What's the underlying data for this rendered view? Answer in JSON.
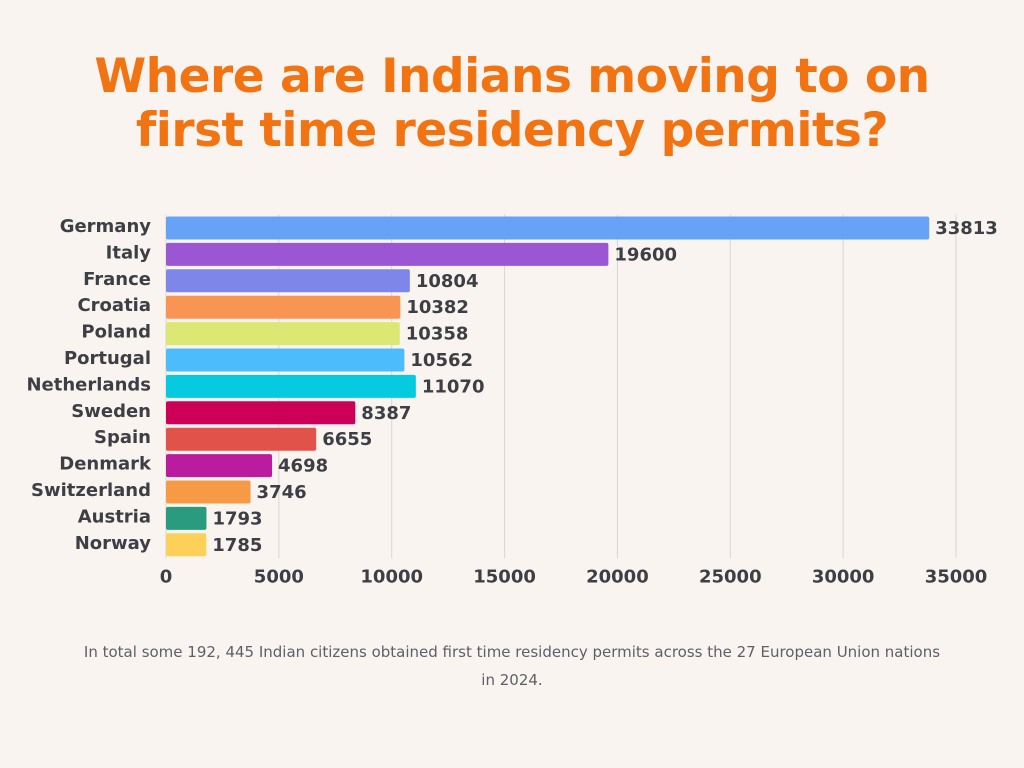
{
  "title_line1": "Where are Indians moving to on",
  "title_line2": "first time residency permits?",
  "footnote": "In total some 192, 445 Indian citizens obtained first time residency permits across the 27 European Union nations in 2024.",
  "chart_data": {
    "type": "bar",
    "orientation": "horizontal",
    "categories": [
      "Germany",
      "Italy",
      "France",
      "Croatia",
      "Poland",
      "Portugal",
      "Netherlands",
      "Sweden",
      "Spain",
      "Denmark",
      "Switzerland",
      "Austria",
      "Norway"
    ],
    "values": [
      33813,
      19600,
      10804,
      10382,
      10358,
      10562,
      11070,
      8387,
      6655,
      4698,
      3746,
      1793,
      1785
    ],
    "colors": [
      "#66a3f7",
      "#9b56d3",
      "#7f86ea",
      "#f99554",
      "#dde874",
      "#4cbcfd",
      "#06cbe0",
      "#cd0057",
      "#e0524a",
      "#ba1b9f",
      "#f69a45",
      "#2b9b7f",
      "#fdd05a"
    ],
    "xticks": [
      0,
      5000,
      10000,
      15000,
      20000,
      25000,
      30000,
      35000
    ],
    "xlim": [
      0,
      35000
    ],
    "grid": "vertical",
    "xlabel": "",
    "ylabel": ""
  }
}
